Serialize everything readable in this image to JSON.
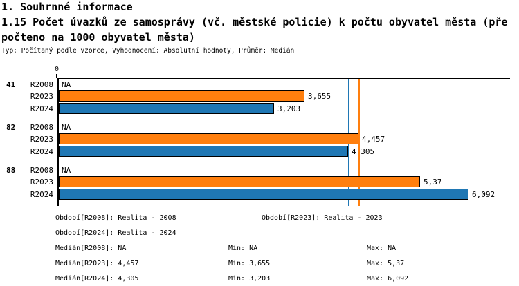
{
  "header": {
    "title": "1. Souhrnné informace",
    "subtitle_lines": [
      "1.15 Počet úvazků ze samosprávy (vč. městské policie) k počtu obyvatel města (pře",
      "počteno na 1000 obyvatel města)"
    ],
    "meta": "Typ: Počítaný podle vzorce, Vyhodnocení: Absolutní hodnoty, Průměr: Medián"
  },
  "chart_data": {
    "type": "bar",
    "orientation": "horizontal",
    "title": "1.15 Počet úvazků ze samosprávy (vč. městské policie) k počtu obyvatel města (přepočteno na 1000 obyvatel města)",
    "axis": {
      "tick_label": "0",
      "min": 0,
      "grid": false
    },
    "categories": [
      "41",
      "82",
      "88"
    ],
    "series_order": [
      "R2008",
      "R2023",
      "R2024"
    ],
    "colors": {
      "R2023": "#ff7f0e",
      "R2024": "#1f77b4"
    },
    "groups": [
      {
        "label": "41",
        "rows": [
          {
            "series": "R2008",
            "value": null,
            "display": "NA"
          },
          {
            "series": "R2023",
            "value": 3.655,
            "display": "3,655"
          },
          {
            "series": "R2024",
            "value": 3.203,
            "display": "3,203"
          }
        ]
      },
      {
        "label": "82",
        "rows": [
          {
            "series": "R2008",
            "value": null,
            "display": "NA"
          },
          {
            "series": "R2023",
            "value": 4.457,
            "display": "4,457"
          },
          {
            "series": "R2024",
            "value": 4.305,
            "display": "4,305"
          }
        ]
      },
      {
        "label": "88",
        "rows": [
          {
            "series": "R2008",
            "value": null,
            "display": "NA"
          },
          {
            "series": "R2023",
            "value": 5.37,
            "display": "5,37"
          },
          {
            "series": "R2024",
            "value": 6.092,
            "display": "6,092"
          }
        ]
      }
    ],
    "median_lines": [
      {
        "series": "R2024",
        "value": 4.305,
        "color": "#1f77b4"
      },
      {
        "series": "R2023",
        "value": 4.457,
        "color": "#ff7f0e"
      }
    ]
  },
  "legend": {
    "period_entries": [
      {
        "text": "Období[R2008]: Realita - 2008"
      },
      {
        "text": "Období[R2023]: Realita - 2023"
      },
      {
        "text": "Období[R2024]: Realita - 2024"
      }
    ],
    "stat_rows": [
      {
        "median": "Medián[R2008]: NA",
        "min": "Min: NA",
        "max": "Max: NA"
      },
      {
        "median": "Medián[R2023]: 4,457",
        "min": "Min: 3,655",
        "max": "Max: 5,37"
      },
      {
        "median": "Medián[R2024]: 4,305",
        "min": "Min: 3,203",
        "max": "Max: 6,092"
      }
    ]
  }
}
